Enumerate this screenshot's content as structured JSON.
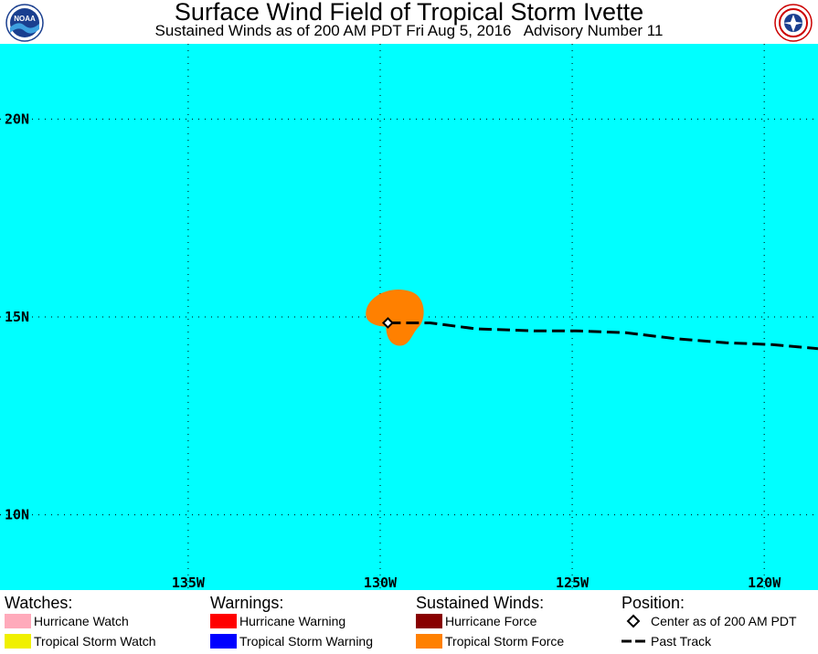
{
  "header": {
    "title": "Surface Wind Field of Tropical Storm Ivette",
    "subtitle": "Sustained Winds as of 200 AM PDT Fri Aug 5, 2016   Advisory Number 11",
    "logo_left": "noaa-logo-icon",
    "logo_right": "nws-logo-icon",
    "logo_left_text": "NOAA"
  },
  "map": {
    "ocean_color": "#00ffff",
    "lat_labels": [
      "20N",
      "15N",
      "10N"
    ],
    "lon_labels": [
      "135W",
      "130W",
      "125W",
      "120W"
    ],
    "lon_range": [
      -139.9,
      -118.6
    ],
    "lat_range": [
      8.1,
      21.9
    ],
    "storm": {
      "center_lon": -129.8,
      "center_lat": 14.85,
      "wind_field": "tropical-storm-force",
      "wind_field_color": "#ff8000"
    },
    "past_track": [
      [
        -129.8,
        14.85
      ],
      [
        -128.7,
        14.85
      ],
      [
        -127.5,
        14.7
      ],
      [
        -126.0,
        14.65
      ],
      [
        -124.9,
        14.65
      ],
      [
        -123.6,
        14.6
      ],
      [
        -122.3,
        14.45
      ],
      [
        -121.0,
        14.35
      ],
      [
        -119.8,
        14.3
      ],
      [
        -118.6,
        14.2
      ]
    ]
  },
  "legend": {
    "watches": {
      "heading": "Watches:",
      "items": [
        {
          "label": "Hurricane Watch",
          "color": "#ffaabb"
        },
        {
          "label": "Tropical Storm Watch",
          "color": "#f0f000"
        }
      ]
    },
    "warnings": {
      "heading": "Warnings:",
      "items": [
        {
          "label": "Hurricane Warning",
          "color": "#ff0000"
        },
        {
          "label": "Tropical Storm Warning",
          "color": "#0000ff"
        }
      ]
    },
    "winds": {
      "heading": "Sustained Winds:",
      "items": [
        {
          "label": "Hurricane Force",
          "color": "#880000"
        },
        {
          "label": "Tropical Storm Force",
          "color": "#ff8000"
        }
      ]
    },
    "position": {
      "heading": "Position:",
      "center_label": "Center as of 200 AM PDT",
      "track_label": "Past Track"
    }
  }
}
